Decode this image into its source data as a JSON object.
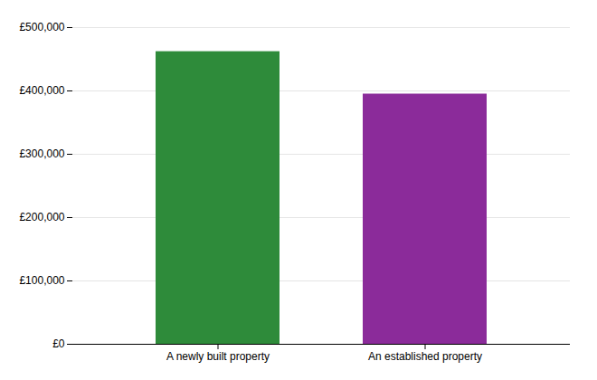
{
  "chart_data": {
    "type": "bar",
    "categories": [
      "A newly built property",
      "An established property"
    ],
    "values": [
      462000,
      395000
    ],
    "colors": [
      "#2e8b3a",
      "#8b2b9a"
    ],
    "ylim": [
      0,
      500000
    ],
    "yticks": [
      {
        "value": 0,
        "label": "£0"
      },
      {
        "value": 100000,
        "label": "£100,000"
      },
      {
        "value": 200000,
        "label": "£200,000"
      },
      {
        "value": 300000,
        "label": "£300,000"
      },
      {
        "value": 400000,
        "label": "£400,000"
      },
      {
        "value": 500000,
        "label": "£500,000"
      }
    ],
    "grid": true
  }
}
